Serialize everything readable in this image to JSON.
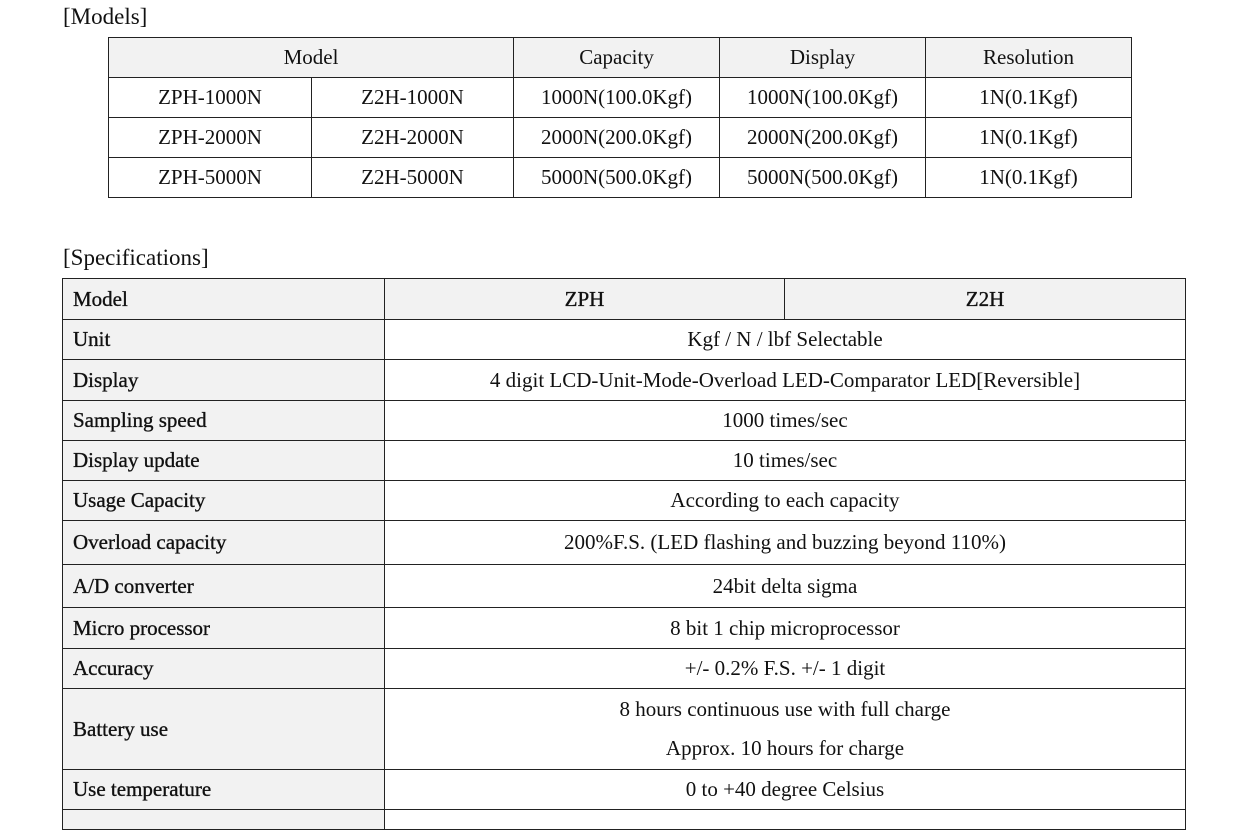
{
  "models": {
    "title": "[Models]",
    "header": [
      "Model",
      "Capacity",
      "Display",
      "Resolution"
    ],
    "rows": [
      [
        "ZPH-1000N",
        "Z2H-1000N",
        "1000N(100.0Kgf)",
        "1000N(100.0Kgf)",
        "1N(0.1Kgf)"
      ],
      [
        "ZPH-2000N",
        "Z2H-2000N",
        "2000N(200.0Kgf)",
        "2000N(200.0Kgf)",
        "1N(0.1Kgf)"
      ],
      [
        "ZPH-5000N",
        "Z2H-5000N",
        "5000N(500.0Kgf)",
        "5000N(500.0Kgf)",
        "1N(0.1Kgf)"
      ]
    ]
  },
  "specifications": {
    "title": "[Specifications]",
    "header": [
      "Model",
      "ZPH",
      "Z2H"
    ],
    "rows": [
      {
        "label": "Unit",
        "value": [
          "Kgf / N / lbf Selectable"
        ]
      },
      {
        "label": "Display",
        "value": [
          "4 digit LCD-Unit-Mode-Overload LED-Comparator LED[Reversible]"
        ]
      },
      {
        "label": "Sampling speed",
        "value": [
          "1000 times/sec"
        ]
      },
      {
        "label": "Display update",
        "value": [
          "10 times/sec"
        ]
      },
      {
        "label": "Usage Capacity",
        "value": [
          "According to each capacity"
        ]
      },
      {
        "label": "Overload capacity",
        "value": [
          "200%F.S. (LED flashing and buzzing beyond 110%)"
        ]
      },
      {
        "label": "A/D converter",
        "value": [
          "24bit delta sigma"
        ]
      },
      {
        "label": "Micro processor",
        "value": [
          "8 bit 1 chip microprocessor"
        ]
      },
      {
        "label": "Accuracy",
        "value": [
          "+/- 0.2% F.S.    +/- 1 digit"
        ]
      },
      {
        "label": "Battery use",
        "value": [
          "8 hours continuous use with full charge",
          "Approx. 10 hours for charge"
        ]
      },
      {
        "label": "Use temperature",
        "value": [
          "0 to +40 degree Celsius"
        ]
      }
    ]
  }
}
